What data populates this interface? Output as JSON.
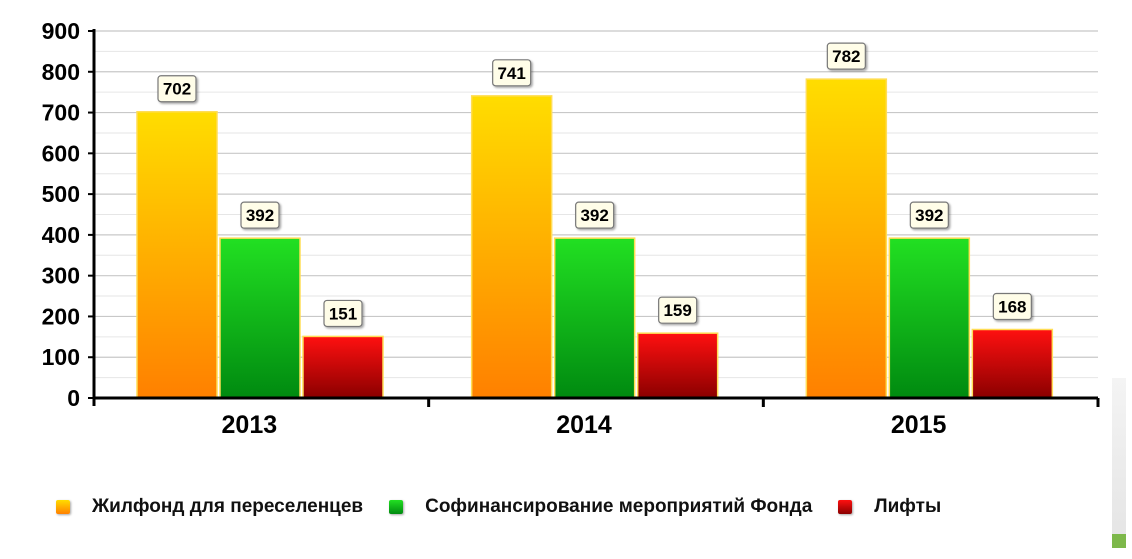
{
  "chart_data": {
    "type": "bar",
    "categories": [
      "2013",
      "2014",
      "2015"
    ],
    "series": [
      {
        "name": "Жилфонд для переселенцев",
        "values": [
          702,
          741,
          782
        ],
        "color": "#ff9900"
      },
      {
        "name": "Софинансирование мероприятий Фонда",
        "values": [
          392,
          392,
          392
        ],
        "color": "#00b000"
      },
      {
        "name": "Лифты",
        "values": [
          151,
          159,
          168
        ],
        "color": "#cc0000"
      }
    ],
    "data_labels": [
      [
        "702",
        "741",
        "782"
      ],
      [
        "392",
        "392",
        "392"
      ],
      [
        "151",
        "159",
        "168"
      ]
    ],
    "y_ticks": [
      "0",
      "100",
      "200",
      "300",
      "400",
      "500",
      "600",
      "700",
      "800",
      "900"
    ],
    "ylim": [
      0,
      900
    ],
    "grid": true,
    "legend_position": "bottom"
  }
}
